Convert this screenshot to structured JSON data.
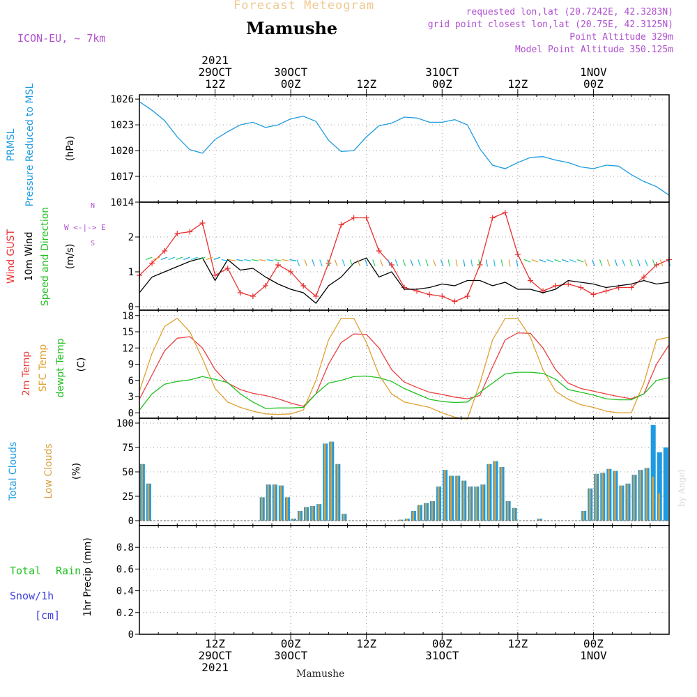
{
  "header": {
    "subtitle": "Forecast Meteogram",
    "title": "Mamushe",
    "model": "ICON-EU, ~ 7km",
    "requested": "requested lon,lat (20.7242E, 42.3283N)",
    "grid_point": "grid point closest lon,lat (20.75E, 42.3125N)",
    "point_altitude": "Point Altitude 329m",
    "model_altitude": "Model Point Altitude 350.125m",
    "footer_station": "Mamushe",
    "watermark": "by Angel"
  },
  "time_axis": {
    "top_ticks": [
      {
        "t": 12,
        "line1": "2021",
        "line2": "29OCT",
        "line3": "12Z"
      },
      {
        "t": 24,
        "line1": "",
        "line2": "30OCT",
        "line3": "00Z"
      },
      {
        "t": 36,
        "line1": "",
        "line2": "",
        "line3": "12Z"
      },
      {
        "t": 48,
        "line1": "",
        "line2": "31OCT",
        "line3": "00Z"
      },
      {
        "t": 60,
        "line1": "",
        "line2": "",
        "line3": "12Z"
      },
      {
        "t": 72,
        "line1": "",
        "line2": "1NOV",
        "line3": "00Z"
      }
    ],
    "bottom_ticks": [
      {
        "t": 12,
        "line1": "12Z",
        "line2": "29OCT",
        "line3": "2021"
      },
      {
        "t": 24,
        "line1": "00Z",
        "line2": "30OCT",
        "line3": ""
      },
      {
        "t": 36,
        "line1": "12Z",
        "line2": "",
        "line3": ""
      },
      {
        "t": 48,
        "line1": "00Z",
        "line2": "31OCT",
        "line3": ""
      },
      {
        "t": 60,
        "line1": "12Z",
        "line2": "",
        "line3": ""
      },
      {
        "t": 72,
        "line1": "00Z",
        "line2": "1NOV",
        "line3": ""
      }
    ]
  },
  "colors": {
    "pressure": "#1e9be0",
    "gust": "#e83030",
    "wind": "#000000",
    "temp2m": "#e84040",
    "sfc_temp": "#e0a030",
    "dewpoint": "#20c020",
    "total_clouds": "#1e9be0",
    "low_clouds": "#d8a040",
    "rain": "#20c020",
    "snow": "#4040e0",
    "info": "#b050d0",
    "subtitle": "#f0c890"
  },
  "panels": {
    "pressure": {
      "label1": "PRMSL",
      "label2": "Pressure Reduced to MSL",
      "unit": "(hPa)"
    },
    "wind": {
      "label1": "Wind GUST",
      "label2": "10m Wind",
      "label3": "Speed and Direction",
      "unit": "(m/s)",
      "compass": "W <-|-> E",
      "compass_n": "N",
      "compass_s": "S"
    },
    "temp": {
      "label1": "2m Temp",
      "label2": "SFC Temp",
      "label3": "dewpt Temp",
      "unit": "(C)"
    },
    "clouds": {
      "label1": "Total Clouds",
      "label2": "Low Clouds",
      "unit": "(%)"
    },
    "precip": {
      "label_total": "Total",
      "label_rain": "Rain",
      "label_snow": "Snow/1h",
      "label_cm": "[cm]",
      "unit": "1hr Precip (mm)"
    }
  },
  "chart_data": [
    {
      "type": "line",
      "name": "pressure",
      "ylim": [
        1014,
        1026.5
      ],
      "yticks": [
        1014,
        1017,
        1020,
        1023,
        1026
      ],
      "x": [
        0,
        2,
        4,
        6,
        8,
        10,
        12,
        14,
        16,
        18,
        20,
        22,
        24,
        26,
        28,
        30,
        32,
        34,
        36,
        38,
        40,
        42,
        44,
        46,
        48,
        50,
        52,
        54,
        56,
        58,
        60,
        62,
        64,
        66,
        68,
        70,
        72,
        74,
        76,
        78,
        80,
        82,
        84
      ],
      "series": [
        {
          "values": [
            1025.7,
            1024.7,
            1023.5,
            1021.6,
            1020.1,
            1019.7,
            1021.3,
            1022.2,
            1023.0,
            1023.3,
            1022.7,
            1023.0,
            1023.7,
            1024.0,
            1023.4,
            1021.2,
            1019.9,
            1020.0,
            1021.6,
            1022.9,
            1023.2,
            1023.9,
            1023.8,
            1023.3,
            1023.3,
            1023.6,
            1023.0,
            1020.2,
            1018.3,
            1017.9,
            1018.6,
            1019.2,
            1019.3,
            1018.9,
            1018.6,
            1018.1,
            1017.9,
            1018.3,
            1018.2,
            1017.2,
            1016.4,
            1015.8,
            1014.8
          ]
        }
      ]
    },
    {
      "type": "line",
      "name": "wind",
      "ylim": [
        -0.1,
        3.0
      ],
      "yticks": [
        0,
        1,
        2
      ],
      "x": [
        0,
        2,
        4,
        6,
        8,
        10,
        12,
        14,
        16,
        18,
        20,
        22,
        24,
        26,
        28,
        30,
        32,
        34,
        36,
        38,
        40,
        42,
        44,
        46,
        48,
        50,
        52,
        54,
        56,
        58,
        60,
        62,
        64,
        66,
        68,
        70,
        72,
        74,
        76,
        78,
        80,
        82,
        84
      ],
      "series": [
        {
          "values": [
            0.9,
            1.25,
            1.6,
            2.1,
            2.15,
            2.4,
            0.9,
            1.1,
            0.4,
            0.3,
            0.6,
            1.2,
            1.0,
            0.6,
            0.3,
            1.25,
            2.35,
            2.55,
            2.55,
            1.6,
            1.2,
            0.55,
            0.45,
            0.35,
            0.3,
            0.15,
            0.3,
            1.2,
            2.55,
            2.7,
            1.5,
            0.75,
            0.45,
            0.6,
            0.65,
            0.55,
            0.35,
            0.45,
            0.55,
            0.55,
            0.85,
            1.2,
            1.35
          ]
        },
        {
          "values": [
            0.4,
            0.85,
            1.0,
            1.15,
            1.3,
            1.4,
            0.75,
            1.35,
            1.05,
            1.1,
            0.85,
            0.65,
            0.5,
            0.4,
            0.1,
            0.6,
            0.85,
            1.25,
            1.4,
            0.85,
            1.0,
            0.5,
            0.5,
            0.55,
            0.65,
            0.6,
            0.75,
            0.75,
            0.6,
            0.7,
            0.5,
            0.5,
            0.4,
            0.5,
            0.75,
            0.7,
            0.65,
            0.55,
            0.6,
            0.65,
            0.75,
            0.65,
            0.7
          ]
        }
      ]
    },
    {
      "type": "line",
      "name": "temperature",
      "ylim": [
        -1,
        19
      ],
      "yticks": [
        0,
        3,
        6,
        9,
        12,
        15,
        18
      ],
      "x": [
        0,
        2,
        4,
        6,
        8,
        10,
        12,
        14,
        16,
        18,
        20,
        22,
        24,
        26,
        28,
        30,
        32,
        34,
        36,
        38,
        40,
        42,
        44,
        46,
        48,
        50,
        52,
        54,
        56,
        58,
        60,
        62,
        64,
        66,
        68,
        70,
        72,
        74,
        76,
        78,
        80,
        82,
        84
      ],
      "series": [
        {
          "values": [
            2.5,
            7.0,
            11.5,
            13.8,
            14.1,
            12.0,
            8.0,
            5.5,
            4.3,
            3.6,
            3.2,
            2.6,
            1.8,
            1.2,
            3.5,
            9.0,
            13.0,
            14.6,
            14.5,
            12.0,
            8.0,
            5.7,
            4.7,
            3.8,
            3.4,
            2.9,
            2.6,
            3.2,
            8.5,
            13.5,
            14.8,
            14.7,
            12.0,
            8.0,
            5.5,
            4.5,
            4.0,
            3.5,
            3.0,
            2.6,
            3.5,
            9.0,
            12.6
          ]
        },
        {
          "values": [
            4.0,
            11.0,
            16.0,
            17.5,
            15.0,
            10.0,
            4.5,
            2.0,
            1.0,
            0.3,
            -0.2,
            -0.3,
            -0.2,
            0.5,
            6.0,
            13.5,
            17.5,
            17.5,
            13.0,
            7.0,
            3.5,
            2.0,
            1.5,
            1.0,
            0.0,
            -0.8,
            -1.2,
            5.5,
            13.5,
            17.5,
            17.5,
            14.0,
            8.0,
            4.0,
            2.5,
            1.5,
            1.0,
            0.3,
            0.0,
            0.0,
            5.5,
            13.5,
            14.0
          ]
        },
        {
          "values": [
            0.5,
            3.5,
            5.3,
            5.8,
            6.1,
            6.7,
            6.2,
            5.6,
            3.5,
            2.0,
            0.8,
            0.9,
            0.9,
            1.0,
            3.5,
            5.5,
            6.0,
            6.7,
            6.8,
            6.5,
            5.8,
            4.5,
            3.5,
            2.5,
            2.1,
            1.9,
            2.0,
            3.8,
            5.5,
            7.2,
            7.5,
            7.5,
            7.3,
            6.2,
            4.3,
            3.8,
            3.3,
            2.6,
            2.4,
            2.4,
            3.5,
            6.0,
            6.5
          ]
        }
      ]
    },
    {
      "type": "bar",
      "name": "clouds",
      "ylim": [
        -5,
        105
      ],
      "yticks": [
        0,
        25,
        50,
        75,
        100
      ],
      "x": [
        0,
        1,
        2,
        3,
        4,
        5,
        6,
        7,
        8,
        9,
        10,
        11,
        12,
        13,
        14,
        15,
        16,
        17,
        18,
        19,
        20,
        21,
        22,
        23,
        24,
        25,
        26,
        27,
        28,
        29,
        30,
        31,
        32,
        33,
        34,
        35,
        36,
        37,
        38,
        39,
        40,
        41,
        42,
        43,
        44,
        45,
        46,
        47,
        48,
        49,
        50,
        51,
        52,
        53,
        54,
        55,
        56,
        57,
        58,
        59,
        60,
        61,
        62,
        63,
        64,
        65,
        66,
        67,
        68,
        69,
        70,
        71,
        72,
        73,
        74,
        75,
        76,
        77,
        78,
        79,
        80,
        81,
        82,
        83
      ],
      "series": [
        {
          "name": "Total Clouds",
          "values": [
            58,
            38,
            0,
            0,
            0,
            0,
            0,
            0,
            0,
            0,
            0,
            0,
            0,
            0,
            0,
            0,
            0,
            0,
            0,
            24,
            37,
            37,
            36,
            24,
            2,
            10,
            14,
            15,
            17,
            79,
            81,
            58,
            7,
            0,
            0,
            0,
            0,
            0,
            0,
            0,
            0,
            1,
            2,
            10,
            16,
            18,
            20,
            35,
            52,
            46,
            46,
            41,
            35,
            35,
            37,
            58,
            61,
            55,
            20,
            13,
            0,
            0,
            0,
            2,
            0,
            0,
            0,
            0,
            0,
            0,
            10,
            33,
            48,
            49,
            53,
            51,
            36,
            38,
            47,
            52,
            54,
            98,
            70,
            75
          ]
        },
        {
          "name": "Low Clouds",
          "values": [
            58,
            38,
            0,
            0,
            0,
            0,
            0,
            0,
            0,
            0,
            0,
            0,
            0,
            0,
            0,
            0,
            0,
            0,
            0,
            24,
            37,
            37,
            36,
            24,
            2,
            10,
            14,
            15,
            17,
            79,
            81,
            58,
            7,
            0,
            0,
            0,
            0,
            0,
            0,
            0,
            0,
            1,
            2,
            10,
            16,
            18,
            20,
            35,
            52,
            46,
            46,
            41,
            35,
            35,
            37,
            58,
            61,
            55,
            20,
            13,
            0,
            0,
            0,
            2,
            0,
            0,
            0,
            0,
            0,
            0,
            10,
            33,
            48,
            49,
            53,
            51,
            36,
            38,
            47,
            52,
            54,
            45,
            28,
            0
          ]
        }
      ]
    },
    {
      "type": "bar",
      "name": "precipitation",
      "ylim": [
        0,
        1.0
      ],
      "yticks": [
        0,
        0.2,
        0.4,
        0.6,
        0.8
      ],
      "x": [],
      "series": [
        {
          "name": "Total Rain",
          "values": []
        }
      ]
    }
  ]
}
